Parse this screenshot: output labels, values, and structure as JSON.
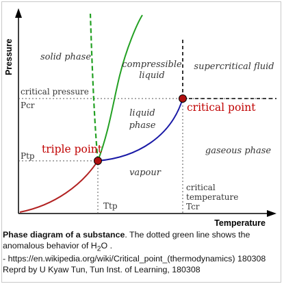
{
  "diagram": {
    "axes": {
      "y_label": "Pressure",
      "x_label": "Temperature"
    },
    "regions": {
      "solid": "solid phase",
      "compressible_line1": "compressible",
      "compressible_line2": "liquid",
      "supercritical": "supercritical fluid",
      "liquid_line1": "liquid",
      "liquid_line2": "phase",
      "gaseous": "gaseous phase",
      "vapour": "vapour"
    },
    "labels": {
      "critical_pressure": "critical pressure",
      "p_cr": "Pcr",
      "p_tp": "Ptp",
      "triple_point": "triple point",
      "critical_point": "critical point",
      "critical_temp_line1": "critical",
      "critical_temp_line2": "temperature",
      "t_cr": "Tcr",
      "t_tp": "Ttp"
    },
    "colors": {
      "sublimation_curve": "#b22222",
      "vaporization_curve": "#1a1aa6",
      "fusion_curve": "#22a022",
      "point_fill": "#b01010",
      "label_red": "#c00000",
      "text": "#333333"
    }
  },
  "caption": {
    "title": "Phase diagram of a substance",
    "text_before": ". The dotted green line shows the anomalous behavior of H",
    "sub": "2",
    "text_after": "O .",
    "source": "- https://en.wikipedia.org/wiki/Critical_point_(thermodynamics) 180308",
    "credit": "Reprd by U Kyaw Tun, Tun Inst. of Learning, 180308"
  }
}
